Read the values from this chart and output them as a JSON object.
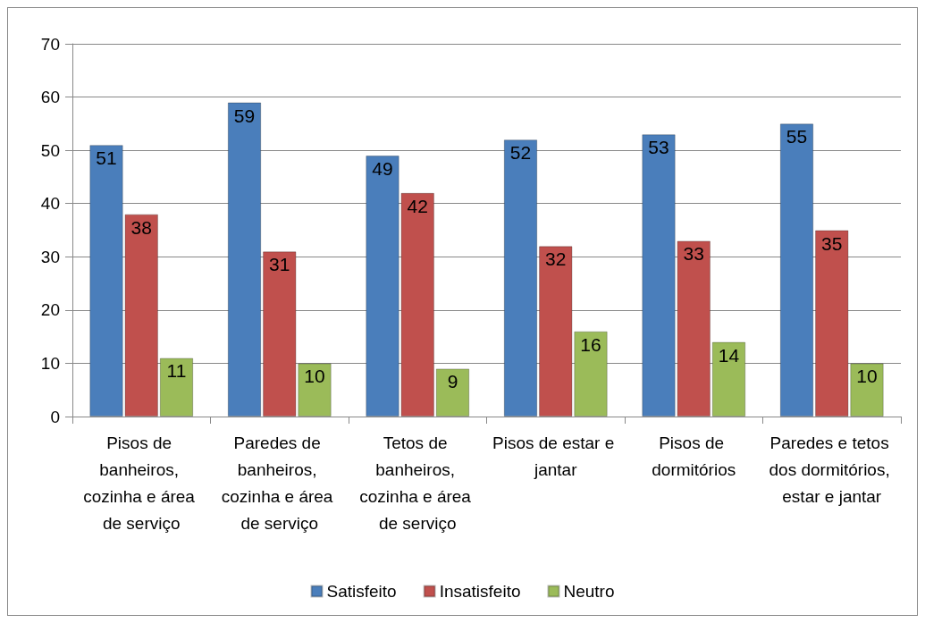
{
  "chart_data": {
    "type": "bar",
    "categories": [
      "Pisos de banheiros, cozinha e área de serviço",
      "Paredes de banheiros, cozinha e área de serviço",
      "Tetos de banheiros, cozinha e área de serviço",
      "Pisos de estar e jantar",
      "Pisos de dormitórios",
      "Paredes e tetos dos dormitórios, estar e jantar"
    ],
    "series": [
      {
        "name": "Satisfeito",
        "color": "#4a7ebb",
        "values": [
          51,
          59,
          49,
          52,
          53,
          55
        ]
      },
      {
        "name": "Insatisfeito",
        "color": "#c0504d",
        "values": [
          38,
          31,
          42,
          32,
          33,
          35
        ]
      },
      {
        "name": "Neutro",
        "color": "#9bbb59",
        "values": [
          11,
          10,
          9,
          16,
          14,
          10
        ]
      }
    ],
    "ylim": [
      0,
      70
    ],
    "yticks": [
      0,
      10,
      20,
      30,
      40,
      50,
      60,
      70
    ],
    "grid": "y",
    "legend": "bottom",
    "data_labels": true
  }
}
